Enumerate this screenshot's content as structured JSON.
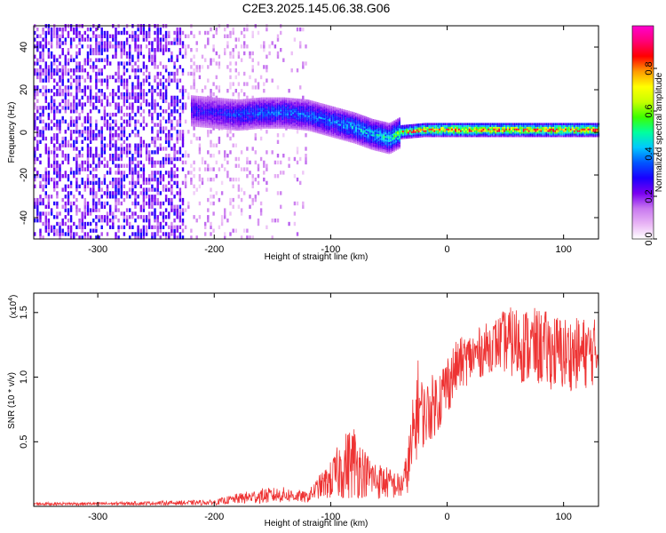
{
  "title": "C2E3.2025.145.06.38.G06",
  "chart_data": [
    {
      "type": "heatmap",
      "xlabel": "Height of straight line (km)",
      "ylabel": "Frequency (Hz)",
      "xlim": [
        -355,
        130
      ],
      "ylim": [
        -50,
        50
      ],
      "xticks": [
        -300,
        -200,
        -100,
        0,
        100
      ],
      "yticks": [
        -40,
        -20,
        0,
        20,
        40
      ],
      "colorbar": {
        "label": "Normalized spectral amplitude",
        "range": [
          0,
          1
        ],
        "ticks": [
          "0.0",
          "0.2",
          "0.4",
          "0.6",
          "0.8"
        ],
        "tick_values": [
          0,
          0.2,
          0.4,
          0.6,
          0.8
        ],
        "colors": [
          "#ffffff",
          "#e9b5f5",
          "#c878ef",
          "#7a00f0",
          "#1a00ff",
          "#0055ff",
          "#00c8ff",
          "#00ff9e",
          "#3cff00",
          "#c8ff00",
          "#ffff00",
          "#ff9a00",
          "#ff0000",
          "#ff0078",
          "#ff00d0"
        ]
      },
      "features": {
        "noise_x_range": [
          -355,
          -120
        ],
        "signal_ridge": [
          {
            "x": -220,
            "freq": 10,
            "amp": 0.3
          },
          {
            "x": -200,
            "freq": 9,
            "amp": 0.3
          },
          {
            "x": -180,
            "freq": 8,
            "amp": 0.35
          },
          {
            "x": -160,
            "freq": 9,
            "amp": 0.38
          },
          {
            "x": -140,
            "freq": 9,
            "amp": 0.38
          },
          {
            "x": -120,
            "freq": 8,
            "amp": 0.38
          },
          {
            "x": -100,
            "freq": 5,
            "amp": 0.4
          },
          {
            "x": -80,
            "freq": 2,
            "amp": 0.45
          },
          {
            "x": -65,
            "freq": -1,
            "amp": 0.45
          },
          {
            "x": -50,
            "freq": -3,
            "amp": 0.5
          },
          {
            "x": -40,
            "freq": 0,
            "amp": 0.6
          },
          {
            "x": -20,
            "freq": 1,
            "amp": 0.75
          },
          {
            "x": 0,
            "freq": 1,
            "amp": 0.8
          },
          {
            "x": 50,
            "freq": 1,
            "amp": 0.8
          },
          {
            "x": 100,
            "freq": 1,
            "amp": 0.8
          },
          {
            "x": 130,
            "freq": 1,
            "amp": 0.8
          }
        ]
      }
    },
    {
      "type": "line",
      "xlabel": "Height of straight line (km)",
      "ylabel": "SNR (10 * v/v)",
      "scale_note": "(x10",
      "scale_exp": "4",
      "xlim": [
        -355,
        130
      ],
      "ylim": [
        0,
        16500
      ],
      "xticks": [
        -300,
        -200,
        -100,
        0,
        100
      ],
      "yticks": [
        5000,
        10000,
        15000
      ],
      "ytick_labels": [
        "0.5",
        "1.0",
        "1.5"
      ],
      "color": "#ee3333",
      "envelope": {
        "x": [
          -355,
          -300,
          -250,
          -200,
          -180,
          -160,
          -140,
          -120,
          -110,
          -100,
          -90,
          -80,
          -70,
          -60,
          -50,
          -40,
          -35,
          -30,
          -25,
          -20,
          -15,
          -10,
          -5,
          0,
          10,
          20,
          30,
          40,
          50,
          60,
          70,
          80,
          90,
          100,
          110,
          120,
          130
        ],
        "mean": [
          200,
          200,
          250,
          300,
          600,
          800,
          900,
          700,
          1500,
          2000,
          3000,
          3500,
          2500,
          2000,
          1800,
          1500,
          2500,
          4500,
          8000,
          7000,
          7500,
          8000,
          8500,
          9500,
          11000,
          11500,
          12000,
          12500,
          12800,
          12600,
          12400,
          12300,
          12000,
          11800,
          11800,
          11900,
          12000
        ],
        "spread": [
          120,
          120,
          150,
          200,
          400,
          600,
          600,
          400,
          900,
          1500,
          2500,
          3000,
          1800,
          1500,
          1200,
          1000,
          1500,
          3500,
          3500,
          2500,
          2500,
          2500,
          2500,
          2500,
          2000,
          2000,
          2000,
          2000,
          2500,
          3000,
          3000,
          3000,
          3000,
          3000,
          2800,
          2800,
          2500
        ]
      }
    }
  ]
}
